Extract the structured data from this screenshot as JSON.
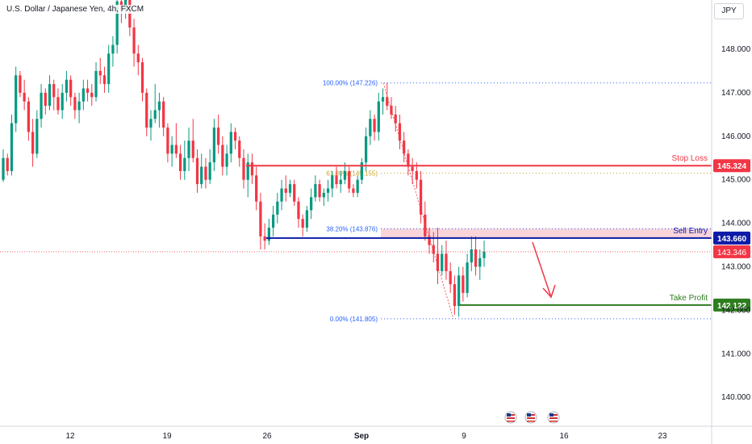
{
  "chart_data": {
    "type": "candlestick",
    "title": "U.S. Dollar / Japanese Yen, 4h, FXCM",
    "currency": "JPY",
    "x_tick_labels": [
      "12",
      "19",
      "26",
      "Sep",
      "9",
      "16",
      "23"
    ],
    "y_tick_labels": [
      "140.000",
      "141.000",
      "142.000",
      "143.000",
      "144.000",
      "145.000",
      "146.000",
      "147.000",
      "148.000"
    ],
    "ylim": [
      139.3,
      149.1
    ],
    "grid": false,
    "levels": [
      {
        "name": "Stop Loss",
        "value": 145.324,
        "label": "145.324",
        "color": "#f23645"
      },
      {
        "name": "Sell Entry",
        "value": 143.66,
        "label": "143.660",
        "color": "#0d1ba8"
      },
      {
        "name": "Take Profit",
        "value": 142.122,
        "label": "142.122",
        "color": "#2e7d1f"
      }
    ],
    "current_price": {
      "value": 143.346,
      "label": "143.346",
      "color": "#f23645"
    },
    "fibonacci": [
      {
        "label": "100.00% (147.226)",
        "value": 147.226
      },
      {
        "label": "61.80% (145.155)",
        "value": 145.155
      },
      {
        "label": "38.20% (143.876)",
        "value": 143.876
      },
      {
        "label": "0.00% (141.805)",
        "value": 141.805
      }
    ],
    "candles": [
      [
        145.0,
        145.7,
        144.95,
        145.5
      ],
      [
        145.5,
        145.6,
        145.1,
        145.2
      ],
      [
        145.2,
        146.5,
        145.1,
        146.3
      ],
      [
        146.3,
        147.6,
        146.1,
        147.4
      ],
      [
        147.4,
        147.5,
        146.9,
        147.0
      ],
      [
        147.0,
        147.3,
        146.6,
        146.8
      ],
      [
        146.8,
        146.9,
        145.9,
        146.1
      ],
      [
        146.1,
        146.4,
        145.3,
        145.6
      ],
      [
        145.6,
        146.6,
        145.5,
        146.4
      ],
      [
        146.4,
        147.2,
        146.2,
        147.0
      ],
      [
        147.0,
        147.1,
        146.5,
        146.7
      ],
      [
        146.7,
        147.4,
        146.6,
        147.2
      ],
      [
        147.2,
        147.3,
        146.6,
        146.9
      ],
      [
        146.9,
        147.1,
        146.5,
        146.6
      ],
      [
        146.6,
        147.2,
        146.4,
        147.0
      ],
      [
        147.0,
        147.5,
        146.8,
        147.3
      ],
      [
        147.3,
        147.4,
        146.7,
        146.9
      ],
      [
        146.9,
        147.0,
        146.4,
        146.6
      ],
      [
        146.6,
        147.0,
        146.3,
        146.8
      ],
      [
        146.8,
        147.3,
        146.6,
        147.1
      ],
      [
        147.1,
        147.3,
        146.8,
        147.0
      ],
      [
        147.0,
        147.2,
        146.7,
        146.9
      ],
      [
        146.9,
        147.7,
        146.8,
        147.5
      ],
      [
        147.5,
        147.8,
        147.2,
        147.4
      ],
      [
        147.4,
        147.6,
        147.0,
        147.2
      ],
      [
        147.2,
        148.1,
        147.0,
        147.9
      ],
      [
        147.9,
        148.3,
        147.6,
        148.1
      ],
      [
        148.1,
        149.3,
        147.9,
        149.1
      ],
      [
        149.1,
        149.4,
        148.6,
        148.9
      ],
      [
        148.9,
        149.5,
        148.7,
        149.2
      ],
      [
        149.2,
        149.3,
        148.3,
        148.5
      ],
      [
        148.5,
        148.7,
        147.6,
        147.9
      ],
      [
        147.9,
        148.1,
        147.4,
        147.7
      ],
      [
        147.7,
        147.8,
        146.8,
        147.0
      ],
      [
        147.0,
        147.1,
        146.0,
        146.2
      ],
      [
        146.2,
        146.6,
        145.9,
        146.4
      ],
      [
        146.4,
        147.2,
        146.3,
        146.6
      ],
      [
        146.6,
        147.0,
        146.2,
        146.8
      ],
      [
        146.8,
        146.9,
        146.0,
        146.2
      ],
      [
        146.2,
        146.3,
        145.4,
        145.6
      ],
      [
        145.6,
        146.0,
        145.3,
        145.8
      ],
      [
        145.8,
        146.3,
        145.5,
        145.6
      ],
      [
        145.6,
        145.8,
        145.0,
        145.2
      ],
      [
        145.2,
        145.9,
        145.0,
        145.5
      ],
      [
        145.5,
        146.2,
        145.2,
        145.9
      ],
      [
        145.9,
        146.4,
        145.4,
        145.5
      ],
      [
        145.5,
        145.7,
        144.7,
        144.9
      ],
      [
        144.9,
        145.6,
        144.8,
        145.3
      ],
      [
        145.3,
        145.5,
        144.8,
        145.0
      ],
      [
        145.0,
        145.7,
        144.9,
        145.4
      ],
      [
        145.4,
        146.4,
        145.2,
        146.2
      ],
      [
        146.2,
        146.5,
        145.6,
        145.8
      ],
      [
        145.8,
        146.0,
        145.1,
        145.3
      ],
      [
        145.3,
        145.8,
        145.1,
        145.6
      ],
      [
        145.6,
        146.3,
        145.4,
        146.1
      ],
      [
        146.1,
        146.2,
        145.7,
        145.9
      ],
      [
        145.9,
        146.0,
        145.3,
        145.5
      ],
      [
        145.5,
        145.7,
        144.8,
        145.0
      ],
      [
        145.0,
        145.6,
        144.6,
        145.4
      ],
      [
        145.4,
        145.6,
        144.9,
        145.1
      ],
      [
        145.1,
        145.3,
        144.3,
        144.5
      ],
      [
        144.5,
        144.7,
        143.4,
        143.7
      ],
      [
        143.7,
        144.0,
        143.4,
        143.6
      ],
      [
        143.6,
        144.1,
        143.5,
        143.9
      ],
      [
        143.9,
        144.4,
        143.7,
        144.2
      ],
      [
        144.2,
        144.7,
        144.0,
        144.5
      ],
      [
        144.5,
        145.0,
        144.3,
        144.8
      ],
      [
        144.8,
        145.1,
        144.5,
        144.7
      ],
      [
        144.7,
        145.0,
        144.6,
        144.9
      ],
      [
        144.9,
        145.0,
        144.4,
        144.5
      ],
      [
        144.5,
        144.6,
        143.9,
        144.1
      ],
      [
        144.1,
        144.2,
        143.7,
        143.9
      ],
      [
        143.9,
        144.4,
        143.8,
        144.3
      ],
      [
        144.3,
        144.8,
        144.1,
        144.6
      ],
      [
        144.6,
        145.1,
        144.5,
        144.9
      ],
      [
        144.9,
        145.0,
        144.5,
        144.6
      ],
      [
        144.6,
        144.8,
        144.4,
        144.7
      ],
      [
        144.7,
        145.0,
        144.5,
        144.8
      ],
      [
        144.8,
        145.2,
        144.6,
        145.1
      ],
      [
        145.1,
        145.3,
        144.8,
        144.9
      ],
      [
        144.9,
        145.2,
        144.7,
        145.0
      ],
      [
        145.0,
        145.4,
        144.9,
        145.2
      ],
      [
        145.2,
        145.3,
        144.7,
        144.8
      ],
      [
        144.8,
        144.9,
        144.6,
        144.7
      ],
      [
        144.7,
        145.1,
        144.6,
        145.0
      ],
      [
        145.0,
        145.5,
        144.9,
        145.4
      ],
      [
        145.4,
        146.2,
        145.2,
        146.0
      ],
      [
        146.0,
        146.6,
        145.8,
        146.4
      ],
      [
        146.4,
        146.5,
        145.9,
        146.1
      ],
      [
        146.1,
        147.0,
        145.9,
        146.8
      ],
      [
        146.8,
        147.1,
        146.5,
        146.9
      ],
      [
        146.9,
        147.23,
        146.6,
        146.7
      ],
      [
        146.7,
        146.9,
        146.4,
        146.5
      ],
      [
        146.5,
        146.7,
        146.1,
        146.3
      ],
      [
        146.3,
        146.5,
        145.7,
        145.9
      ],
      [
        145.9,
        146.1,
        145.4,
        145.6
      ],
      [
        145.6,
        145.7,
        145.1,
        145.3
      ],
      [
        145.3,
        145.5,
        144.9,
        145.2
      ],
      [
        145.2,
        145.4,
        144.8,
        145.0
      ],
      [
        145.0,
        145.2,
        144.0,
        144.2
      ],
      [
        144.2,
        144.5,
        143.6,
        143.7
      ],
      [
        143.7,
        143.9,
        143.3,
        143.5
      ],
      [
        143.5,
        143.8,
        143.1,
        143.3
      ],
      [
        143.3,
        143.9,
        142.6,
        142.9
      ],
      [
        142.9,
        143.5,
        142.8,
        143.3
      ],
      [
        143.3,
        143.6,
        142.7,
        142.9
      ],
      [
        142.9,
        143.1,
        142.4,
        142.6
      ],
      [
        142.6,
        142.8,
        141.9,
        142.1
      ],
      [
        142.1,
        143.0,
        141.85,
        142.8
      ],
      [
        142.8,
        143.0,
        142.2,
        142.4
      ],
      [
        142.4,
        143.3,
        142.3,
        143.1
      ],
      [
        143.1,
        143.7,
        142.9,
        143.4
      ],
      [
        143.4,
        143.7,
        142.8,
        143.0
      ],
      [
        143.0,
        143.4,
        142.7,
        143.2
      ],
      [
        143.2,
        143.6,
        143.0,
        143.35
      ]
    ]
  },
  "x_axis": {
    "ticks": [
      "12",
      "19",
      "26",
      "Sep",
      "9",
      "16",
      "23"
    ]
  },
  "y_axis": {
    "ticks": [
      "140.000",
      "141.000",
      "142.000",
      "143.000",
      "144.000",
      "145.000",
      "146.000",
      "147.000",
      "148.000"
    ]
  },
  "labels": {
    "stop_loss": "Stop Loss",
    "sell_entry": "Sell Entry",
    "take_profit": "Take Profit"
  },
  "colors": {
    "up": "#089981",
    "down": "#f23645",
    "fib": "#2962ff",
    "fib_mid": "#c9a227",
    "zone": "#f7c5cc"
  }
}
